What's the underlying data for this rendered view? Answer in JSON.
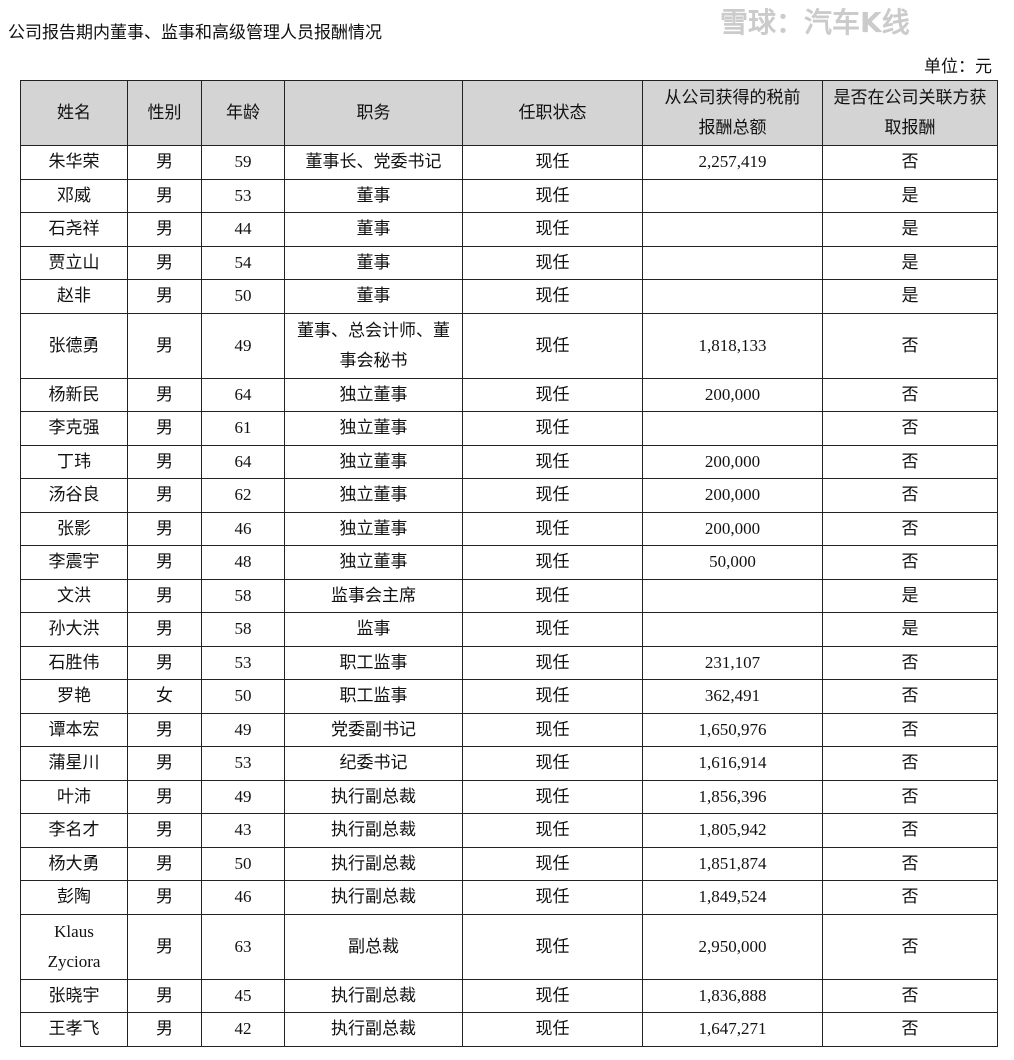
{
  "title": "公司报告期内董事、监事和高级管理人员报酬情况",
  "unit": "单位：元",
  "headers": [
    "姓名",
    "性别",
    "年龄",
    "职务",
    "任职状态",
    "从公司获得的税前报酬总额",
    "是否在公司关联方获取报酬"
  ],
  "rows": [
    [
      "朱华荣",
      "男",
      "59",
      "董事长、党委书记",
      "现任",
      "2,257,419",
      "否"
    ],
    [
      "邓威",
      "男",
      "53",
      "董事",
      "现任",
      "",
      "是"
    ],
    [
      "石尧祥",
      "男",
      "44",
      "董事",
      "现任",
      "",
      "是"
    ],
    [
      "贾立山",
      "男",
      "54",
      "董事",
      "现任",
      "",
      "是"
    ],
    [
      "赵非",
      "男",
      "50",
      "董事",
      "现任",
      "",
      "是"
    ],
    [
      "张德勇",
      "男",
      "49",
      "董事、总会计师、董事会秘书",
      "现任",
      "1,818,133",
      "否"
    ],
    [
      "杨新民",
      "男",
      "64",
      "独立董事",
      "现任",
      "200,000",
      "否"
    ],
    [
      "李克强",
      "男",
      "61",
      "独立董事",
      "现任",
      "",
      "否"
    ],
    [
      "丁玮",
      "男",
      "64",
      "独立董事",
      "现任",
      "200,000",
      "否"
    ],
    [
      "汤谷良",
      "男",
      "62",
      "独立董事",
      "现任",
      "200,000",
      "否"
    ],
    [
      "张影",
      "男",
      "46",
      "独立董事",
      "现任",
      "200,000",
      "否"
    ],
    [
      "李震宇",
      "男",
      "48",
      "独立董事",
      "现任",
      "50,000",
      "否"
    ],
    [
      "文洪",
      "男",
      "58",
      "监事会主席",
      "现任",
      "",
      "是"
    ],
    [
      "孙大洪",
      "男",
      "58",
      "监事",
      "现任",
      "",
      "是"
    ],
    [
      "石胜伟",
      "男",
      "53",
      "职工监事",
      "现任",
      "231,107",
      "否"
    ],
    [
      "罗艳",
      "女",
      "50",
      "职工监事",
      "现任",
      "362,491",
      "否"
    ],
    [
      "谭本宏",
      "男",
      "49",
      "党委副书记",
      "现任",
      "1,650,976",
      "否"
    ],
    [
      "蒲星川",
      "男",
      "53",
      "纪委书记",
      "现任",
      "1,616,914",
      "否"
    ],
    [
      "叶沛",
      "男",
      "49",
      "执行副总裁",
      "现任",
      "1,856,396",
      "否"
    ],
    [
      "李名才",
      "男",
      "43",
      "执行副总裁",
      "现任",
      "1,805,942",
      "否"
    ],
    [
      "杨大勇",
      "男",
      "50",
      "执行副总裁",
      "现任",
      "1,851,874",
      "否"
    ],
    [
      "彭陶",
      "男",
      "46",
      "执行副总裁",
      "现任",
      "1,849,524",
      "否"
    ],
    [
      "Klaus Zyciora",
      "男",
      "63",
      "副总裁",
      "现任",
      "2,950,000",
      "否"
    ],
    [
      "张晓宇",
      "男",
      "45",
      "执行副总裁",
      "现任",
      "1,836,888",
      "否"
    ],
    [
      "王孝飞",
      "男",
      "42",
      "执行副总裁",
      "现任",
      "1,647,271",
      "否"
    ]
  ],
  "watermark": "雪球：汽车K线"
}
